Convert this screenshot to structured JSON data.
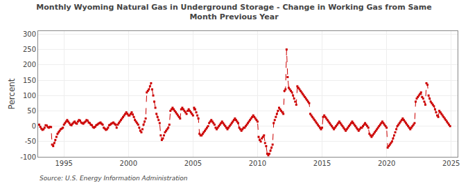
{
  "chart_data": {
    "type": "line",
    "title": "Monthly Wyoming Natural Gas in Underground Storage - Change in Working Gas from Same\nMonth Previous Year",
    "ylabel": "Percent",
    "annotations": [
      "Source: U.S. Energy Information Administration"
    ],
    "color": "#CC0000",
    "line_style": "dashed",
    "marker": "square",
    "grid": true,
    "xlim": [
      1993.0,
      2025.5
    ],
    "ylim": [
      -100,
      310
    ],
    "xticks": [
      1995,
      2000,
      2005,
      2010,
      2015,
      2020,
      2025
    ],
    "yticks": [
      -100,
      -50,
      0,
      50,
      100,
      150,
      200,
      250,
      300
    ],
    "x": [
      1993.083,
      1993.167,
      1993.25,
      1993.333,
      1993.417,
      1993.5,
      1993.583,
      1993.667,
      1993.75,
      1993.833,
      1993.917,
      1994.0,
      1994.083,
      1994.167,
      1994.25,
      1994.333,
      1994.417,
      1994.5,
      1994.583,
      1994.667,
      1994.75,
      1994.833,
      1994.917,
      1995.0,
      1995.083,
      1995.167,
      1995.25,
      1995.333,
      1995.417,
      1995.5,
      1995.583,
      1995.667,
      1995.75,
      1995.833,
      1995.917,
      1996.0,
      1996.083,
      1996.167,
      1996.25,
      1996.333,
      1996.417,
      1996.5,
      1996.583,
      1996.667,
      1996.75,
      1996.833,
      1996.917,
      1997.0,
      1997.083,
      1997.167,
      1997.25,
      1997.333,
      1997.417,
      1997.5,
      1997.583,
      1997.667,
      1997.75,
      1997.833,
      1997.917,
      1998.0,
      1998.083,
      1998.167,
      1998.25,
      1998.333,
      1998.417,
      1998.5,
      1998.583,
      1998.667,
      1998.75,
      1998.833,
      1998.917,
      1999.0,
      1999.083,
      1999.167,
      1999.25,
      1999.333,
      1999.417,
      1999.5,
      1999.583,
      1999.667,
      1999.75,
      1999.833,
      1999.917,
      2000.0,
      2000.083,
      2000.167,
      2000.25,
      2000.333,
      2000.417,
      2000.5,
      2000.583,
      2000.667,
      2000.75,
      2000.833,
      2000.917,
      2001.0,
      2001.083,
      2001.167,
      2001.25,
      2001.333,
      2001.417,
      2001.5,
      2001.583,
      2001.667,
      2001.75,
      2001.833,
      2001.917,
      2002.0,
      2002.083,
      2002.167,
      2002.25,
      2002.333,
      2002.417,
      2002.5,
      2002.583,
      2002.667,
      2002.75,
      2002.833,
      2002.917,
      2003.0,
      2003.083,
      2003.167,
      2003.25,
      2003.333,
      2003.417,
      2003.5,
      2003.583,
      2003.667,
      2003.75,
      2003.833,
      2003.917,
      2004.0,
      2004.083,
      2004.167,
      2004.25,
      2004.333,
      2004.417,
      2004.5,
      2004.583,
      2004.667,
      2004.75,
      2004.833,
      2004.917,
      2005.0,
      2005.083,
      2005.167,
      2005.25,
      2005.333,
      2005.417,
      2005.5,
      2005.583,
      2005.667,
      2005.75,
      2005.833,
      2005.917,
      2006.0,
      2006.083,
      2006.167,
      2006.25,
      2006.333,
      2006.417,
      2006.5,
      2006.583,
      2006.667,
      2006.75,
      2006.833,
      2006.917,
      2007.0,
      2007.083,
      2007.167,
      2007.25,
      2007.333,
      2007.417,
      2007.5,
      2007.583,
      2007.667,
      2007.75,
      2007.833,
      2007.917,
      2008.0,
      2008.083,
      2008.167,
      2008.25,
      2008.333,
      2008.417,
      2008.5,
      2008.583,
      2008.667,
      2008.75,
      2008.833,
      2008.917,
      2009.0,
      2009.083,
      2009.167,
      2009.25,
      2009.333,
      2009.417,
      2009.5,
      2009.583,
      2009.667,
      2009.75,
      2009.833,
      2009.917,
      2010.0,
      2010.083,
      2010.167,
      2010.25,
      2010.333,
      2010.417,
      2010.5,
      2010.583,
      2010.667,
      2010.75,
      2010.833,
      2010.917,
      2011.0,
      2011.083,
      2011.167,
      2011.25,
      2011.333,
      2011.417,
      2011.5,
      2011.583,
      2011.667,
      2011.75,
      2011.833,
      2011.917,
      2012.0,
      2012.083,
      2012.167,
      2012.25,
      2012.333,
      2012.417,
      2012.5,
      2012.583,
      2012.667,
      2012.75,
      2012.833,
      2012.917,
      2013.0,
      2013.083,
      2013.167,
      2013.25,
      2013.333,
      2013.417,
      2013.5,
      2013.583,
      2013.667,
      2013.75,
      2013.833,
      2013.917,
      2014.0,
      2014.083,
      2014.167,
      2014.25,
      2014.333,
      2014.417,
      2014.5,
      2014.583,
      2014.667,
      2014.75,
      2014.833,
      2014.917,
      2015.0,
      2015.083,
      2015.167,
      2015.25,
      2015.333,
      2015.417,
      2015.5,
      2015.583,
      2015.667,
      2015.75,
      2015.833,
      2015.917,
      2016.0,
      2016.083,
      2016.167,
      2016.25,
      2016.333,
      2016.417,
      2016.5,
      2016.583,
      2016.667,
      2016.75,
      2016.833,
      2016.917,
      2017.0,
      2017.083,
      2017.167,
      2017.25,
      2017.333,
      2017.417,
      2017.5,
      2017.583,
      2017.667,
      2017.75,
      2017.833,
      2017.917,
      2018.0,
      2018.083,
      2018.167,
      2018.25,
      2018.333,
      2018.417,
      2018.5,
      2018.583,
      2018.667,
      2018.75,
      2018.833,
      2018.917,
      2019.0,
      2019.083,
      2019.167,
      2019.25,
      2019.333,
      2019.417,
      2019.5,
      2019.583,
      2019.667,
      2019.75,
      2019.833,
      2019.917,
      2020.0,
      2020.083,
      2020.167,
      2020.25,
      2020.333,
      2020.417,
      2020.5,
      2020.583,
      2020.667,
      2020.75,
      2020.833,
      2020.917,
      2021.0,
      2021.083,
      2021.167,
      2021.25,
      2021.333,
      2021.417,
      2021.5,
      2021.583,
      2021.667,
      2021.75,
      2021.833,
      2021.917,
      2022.0,
      2022.083,
      2022.167,
      2022.25,
      2022.333,
      2022.417,
      2022.5,
      2022.583,
      2022.667,
      2022.75,
      2022.833,
      2022.917,
      2023.0,
      2023.083,
      2023.167,
      2023.25,
      2023.333,
      2023.417,
      2023.5,
      2023.583,
      2023.667,
      2023.75,
      2023.833,
      2023.917,
      2024.0,
      2024.083,
      2024.167,
      2024.25,
      2024.333,
      2024.417,
      2024.5,
      2024.583,
      2024.667,
      2024.75,
      2024.833,
      2024.917
    ],
    "values": [
      5,
      -2,
      -8,
      -12,
      -10,
      -5,
      3,
      2,
      -3,
      -5,
      -2,
      -3,
      -60,
      -65,
      -55,
      -45,
      -35,
      -25,
      -20,
      -15,
      -10,
      -8,
      -5,
      5,
      10,
      15,
      20,
      15,
      10,
      5,
      3,
      8,
      12,
      15,
      10,
      8,
      15,
      20,
      18,
      12,
      10,
      8,
      12,
      15,
      20,
      18,
      12,
      10,
      5,
      3,
      -3,
      -5,
      -2,
      3,
      5,
      8,
      10,
      12,
      8,
      5,
      -5,
      -8,
      -12,
      -10,
      -5,
      3,
      5,
      8,
      10,
      12,
      8,
      5,
      -5,
      5,
      10,
      15,
      20,
      25,
      30,
      35,
      40,
      45,
      40,
      35,
      35,
      40,
      45,
      38,
      30,
      20,
      15,
      10,
      5,
      -5,
      -15,
      -20,
      -10,
      5,
      15,
      25,
      110,
      115,
      120,
      130,
      140,
      120,
      100,
      80,
      60,
      40,
      30,
      20,
      10,
      -30,
      -45,
      -40,
      -30,
      -20,
      -15,
      -10,
      -5,
      5,
      50,
      55,
      60,
      55,
      50,
      45,
      40,
      35,
      30,
      25,
      55,
      60,
      55,
      50,
      45,
      40,
      50,
      55,
      50,
      45,
      40,
      35,
      60,
      55,
      45,
      35,
      25,
      -25,
      -30,
      -30,
      -25,
      -20,
      -15,
      -10,
      -5,
      0,
      10,
      15,
      20,
      15,
      10,
      5,
      -5,
      -10,
      -5,
      0,
      5,
      10,
      15,
      10,
      5,
      0,
      -5,
      -10,
      -5,
      0,
      5,
      10,
      15,
      20,
      25,
      20,
      15,
      10,
      -5,
      -10,
      -15,
      -10,
      -5,
      -5,
      0,
      5,
      10,
      15,
      20,
      25,
      30,
      35,
      30,
      25,
      20,
      15,
      -35,
      -45,
      -50,
      -40,
      -35,
      -30,
      -55,
      -65,
      -90,
      -95,
      -90,
      -80,
      -70,
      -60,
      10,
      20,
      30,
      40,
      50,
      60,
      55,
      50,
      45,
      40,
      115,
      120,
      250,
      160,
      125,
      120,
      115,
      110,
      100,
      90,
      80,
      70,
      130,
      125,
      120,
      115,
      110,
      105,
      100,
      95,
      90,
      85,
      80,
      75,
      40,
      35,
      30,
      25,
      20,
      15,
      10,
      5,
      0,
      -5,
      -10,
      -5,
      30,
      35,
      30,
      25,
      20,
      15,
      10,
      5,
      0,
      -5,
      -10,
      -5,
      0,
      5,
      10,
      15,
      10,
      5,
      0,
      -5,
      -10,
      -15,
      -10,
      -5,
      0,
      5,
      10,
      15,
      10,
      5,
      0,
      -5,
      -10,
      -15,
      -10,
      -5,
      -5,
      0,
      5,
      10,
      5,
      0,
      -5,
      -25,
      -30,
      -35,
      -30,
      -25,
      -20,
      -15,
      -10,
      -5,
      0,
      5,
      10,
      15,
      10,
      5,
      0,
      -5,
      -70,
      -65,
      -60,
      -55,
      -50,
      -40,
      -30,
      -20,
      -10,
      0,
      5,
      10,
      15,
      20,
      25,
      20,
      15,
      10,
      5,
      0,
      -5,
      -10,
      -5,
      0,
      5,
      10,
      80,
      90,
      95,
      100,
      105,
      110,
      95,
      90,
      80,
      70,
      140,
      135,
      100,
      90,
      80,
      75,
      70,
      65,
      55,
      45,
      35,
      30,
      50,
      45,
      40,
      35,
      30,
      25,
      20,
      15,
      10,
      5,
      0
    ]
  }
}
